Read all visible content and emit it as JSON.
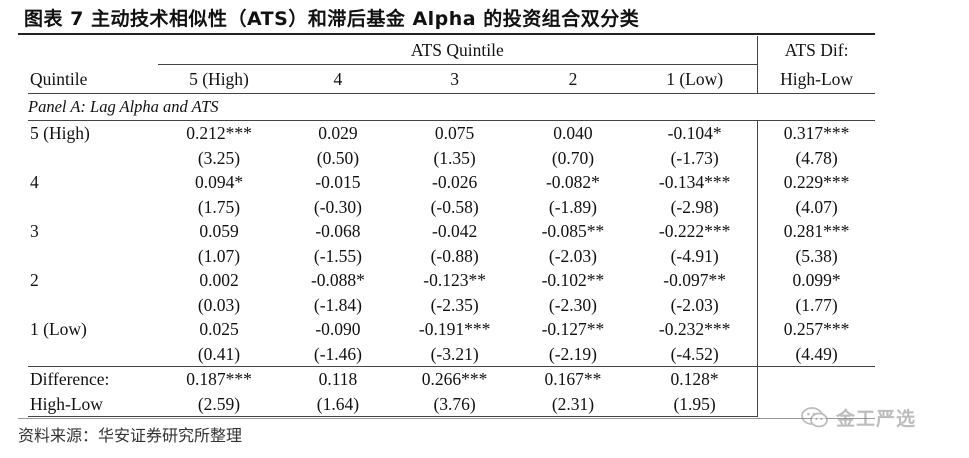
{
  "title": "图表 7 主动技术相似性（ATS）和滞后基金 Alpha 的投资组合双分类",
  "header": {
    "quintile_label": "Quintile",
    "group_label": "ATS Quintile",
    "dif_label_1": "ATS Dif:",
    "dif_label_2": "High-Low",
    "columns": [
      "5 (High)",
      "4",
      "3",
      "2",
      "1 (Low)"
    ]
  },
  "panel_label": "Panel A: Lag Alpha and ATS",
  "rows": [
    {
      "label": "5 (High)",
      "values": [
        "0.212***",
        "0.029",
        "0.075",
        "0.040",
        "-0.104*",
        "0.317***"
      ],
      "tstats": [
        "(3.25)",
        "(0.50)",
        "(1.35)",
        "(0.70)",
        "(-1.73)",
        "(4.78)"
      ]
    },
    {
      "label": "4",
      "values": [
        "0.094*",
        "-0.015",
        "-0.026",
        "-0.082*",
        "-0.134***",
        "0.229***"
      ],
      "tstats": [
        "(1.75)",
        "(-0.30)",
        "(-0.58)",
        "(-1.89)",
        "(-2.98)",
        "(4.07)"
      ]
    },
    {
      "label": "3",
      "values": [
        "0.059",
        "-0.068",
        "-0.042",
        "-0.085**",
        "-0.222***",
        "0.281***"
      ],
      "tstats": [
        "(1.07)",
        "(-1.55)",
        "(-0.88)",
        "(-2.03)",
        "(-4.91)",
        "(5.38)"
      ]
    },
    {
      "label": "2",
      "values": [
        "0.002",
        "-0.088*",
        "-0.123**",
        "-0.102**",
        "-0.097**",
        "0.099*"
      ],
      "tstats": [
        "(0.03)",
        "(-1.84)",
        "(-2.35)",
        "(-2.30)",
        "(-2.03)",
        "(1.77)"
      ]
    },
    {
      "label": "1 (Low)",
      "values": [
        "0.025",
        "-0.090",
        "-0.191***",
        "-0.127**",
        "-0.232***",
        "0.257***"
      ],
      "tstats": [
        "(0.41)",
        "(-1.46)",
        "(-3.21)",
        "(-2.19)",
        "(-4.52)",
        "(4.49)"
      ]
    }
  ],
  "difference": {
    "label_1": "Difference:",
    "label_2": "High-Low",
    "values": [
      "0.187***",
      "0.118",
      "0.266***",
      "0.167**",
      "0.128*"
    ],
    "tstats": [
      "(2.59)",
      "(1.64)",
      "(3.76)",
      "(2.31)",
      "(1.95)"
    ]
  },
  "source": "资料来源：华安证券研究所整理",
  "watermark": {
    "icon": "wechat-icon",
    "text": "金工严选"
  }
}
